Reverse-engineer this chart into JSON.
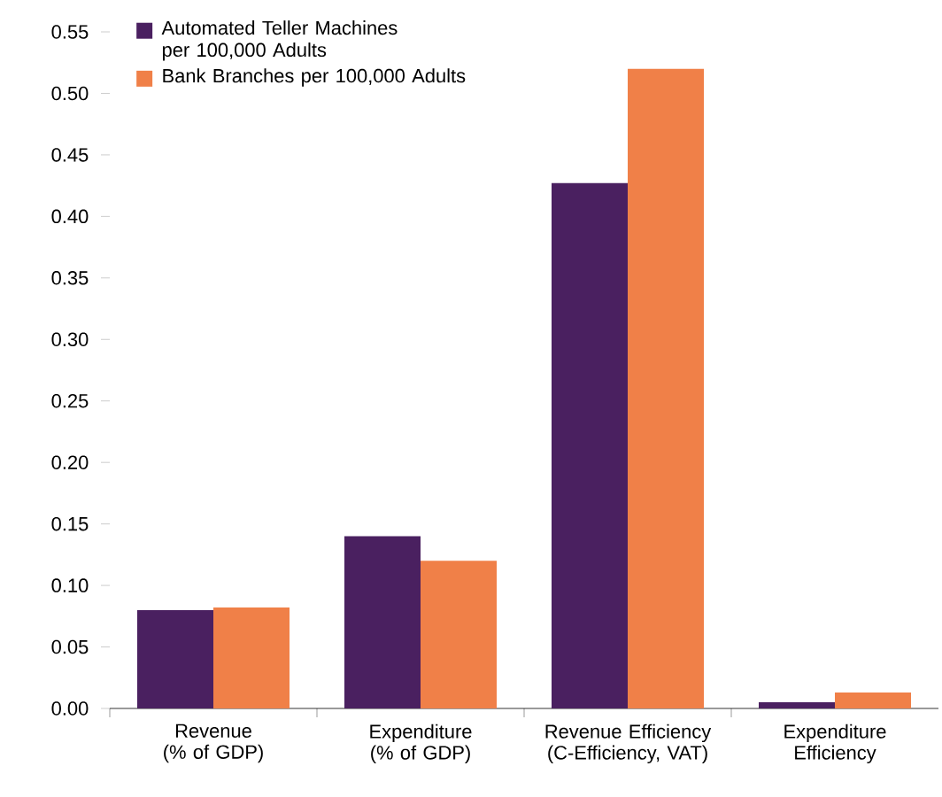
{
  "chart_data": {
    "type": "bar",
    "categories": [
      "Revenue (% of GDP)",
      "Expenditure (% of GDP)",
      "Revenue Efficiency (C-Efficiency, VAT)",
      "Expenditure Efficiency"
    ],
    "series": [
      {
        "name": "Automated Teller Machines per 100,000 Adults",
        "color": "#4a2060",
        "values": [
          0.08,
          0.14,
          0.427,
          0.005
        ]
      },
      {
        "name": "Bank Branches per 100,000 Adults",
        "color": "#f08048",
        "values": [
          0.082,
          0.12,
          0.52,
          0.013
        ]
      }
    ],
    "ylim": [
      0,
      0.55
    ],
    "yticks": [
      {
        "value": 0,
        "label": "0.00"
      },
      {
        "value": 0.05,
        "label": "0.05"
      },
      {
        "value": 0.1,
        "label": "0.10"
      },
      {
        "value": 0.15,
        "label": "0.15"
      },
      {
        "value": 0.2,
        "label": "0.20"
      },
      {
        "value": 0.25,
        "label": "0.25"
      },
      {
        "value": 0.3,
        "label": "0.30"
      },
      {
        "value": 0.35,
        "label": "0.35"
      },
      {
        "value": 0.4,
        "label": "0.40"
      },
      {
        "value": 0.45,
        "label": "0.45"
      },
      {
        "value": 0.5,
        "label": "0.50"
      },
      {
        "value": 0.55,
        "label": "0.55"
      }
    ],
    "grid": false,
    "legend": "top left"
  }
}
